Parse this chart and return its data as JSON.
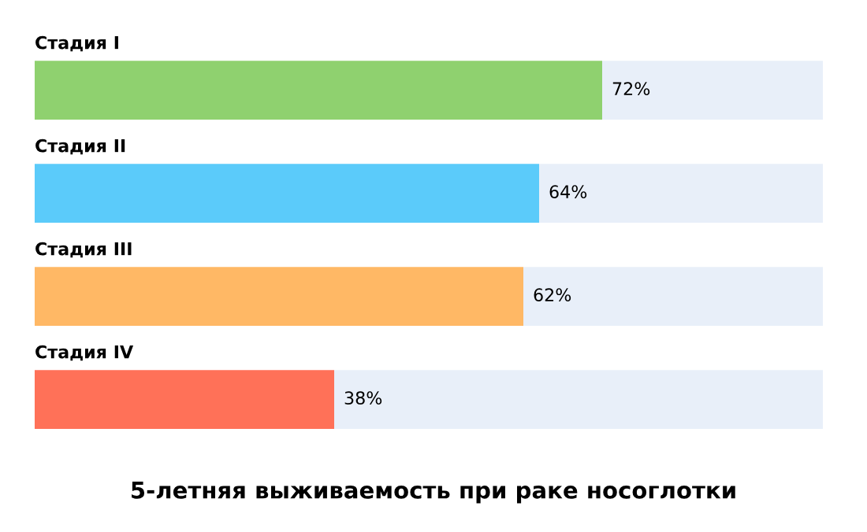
{
  "chart_data": {
    "type": "bar",
    "orientation": "horizontal",
    "stacked": true,
    "title": "5-летняя выживаемость при раке носоглотки",
    "categories": [
      "Стадия I",
      "Стадия II",
      "Стадия III",
      "Стадия IV"
    ],
    "series": [
      {
        "colors": [
          "#8fd16f",
          "#5bcbfa",
          "#ffb865",
          "#ff7158"
        ],
        "values": [
          72,
          64,
          62,
          38
        ],
        "value_labels": [
          "72%",
          "64%",
          "62%",
          "38%"
        ]
      },
      {
        "color": "#e8eff9",
        "values": [
          28,
          36,
          38,
          62
        ]
      }
    ]
  }
}
